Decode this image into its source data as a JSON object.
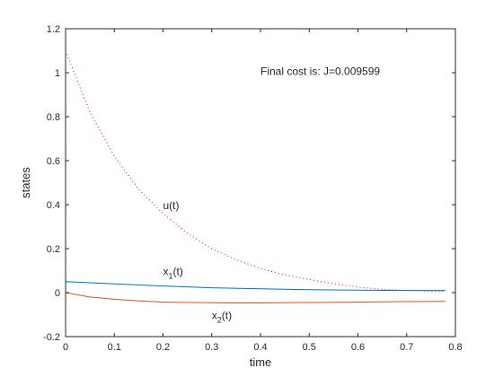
{
  "chart_data": {
    "type": "line",
    "xlabel": "time",
    "ylabel": "states",
    "xlim": [
      0,
      0.8
    ],
    "ylim": [
      -0.2,
      1.2
    ],
    "xticks": [
      0,
      0.1,
      0.2,
      0.3,
      0.4,
      0.5,
      0.6,
      0.7,
      0.8
    ],
    "xtick_labels": [
      "0",
      "0.1",
      "0.2",
      "0.3",
      "0.4",
      "0.5",
      "0.6",
      "0.7",
      "0.8"
    ],
    "yticks": [
      -0.2,
      0,
      0.2,
      0.4,
      0.6,
      0.8,
      1,
      1.2
    ],
    "ytick_labels": [
      "-0.2",
      "0",
      "0.2",
      "0.4",
      "0.6",
      "0.8",
      "1",
      "1.2"
    ],
    "grid": false,
    "series": [
      {
        "name": "u(t)",
        "line_style": "dotted",
        "color": "#ff0000",
        "x": [
          0,
          0.05,
          0.1,
          0.15,
          0.2,
          0.25,
          0.3,
          0.35,
          0.4,
          0.45,
          0.5,
          0.55,
          0.6,
          0.65,
          0.7,
          0.75,
          0.78
        ],
        "y": [
          1.1,
          0.82,
          0.62,
          0.47,
          0.36,
          0.27,
          0.2,
          0.15,
          0.11,
          0.08,
          0.06,
          0.04,
          0.025,
          0.015,
          0.01,
          0.006,
          0.005
        ]
      },
      {
        "name": "x_1(t)",
        "line_style": "solid",
        "color": "#0072bd",
        "x": [
          0,
          0.1,
          0.2,
          0.3,
          0.4,
          0.5,
          0.6,
          0.7,
          0.78
        ],
        "y": [
          0.05,
          0.04,
          0.03,
          0.022,
          0.017,
          0.013,
          0.011,
          0.01,
          0.01
        ]
      },
      {
        "name": "x_2(t)",
        "line_style": "solid",
        "color": "#d95319",
        "x": [
          0,
          0.05,
          0.1,
          0.15,
          0.2,
          0.25,
          0.3,
          0.35,
          0.4,
          0.45,
          0.5,
          0.55,
          0.6,
          0.65,
          0.7,
          0.78
        ],
        "y": [
          0.0,
          -0.02,
          -0.03,
          -0.038,
          -0.043,
          -0.045,
          -0.046,
          -0.047,
          -0.047,
          -0.046,
          -0.045,
          -0.044,
          -0.043,
          -0.042,
          -0.041,
          -0.04
        ]
      }
    ],
    "annotations": [
      {
        "text_base": "u(t)",
        "text_sub": "",
        "text_tail": "",
        "x": 0.2,
        "y": 0.38
      },
      {
        "text_base": "x",
        "text_sub": "1",
        "text_tail": "(t)",
        "x": 0.2,
        "y": 0.08
      },
      {
        "text_base": "x",
        "text_sub": "2",
        "text_tail": "(t)",
        "x": 0.3,
        "y": -0.12
      }
    ],
    "cost_text": "Final cost is: J=0.009599",
    "cost_position": {
      "x": 0.4,
      "y": 0.99
    }
  }
}
